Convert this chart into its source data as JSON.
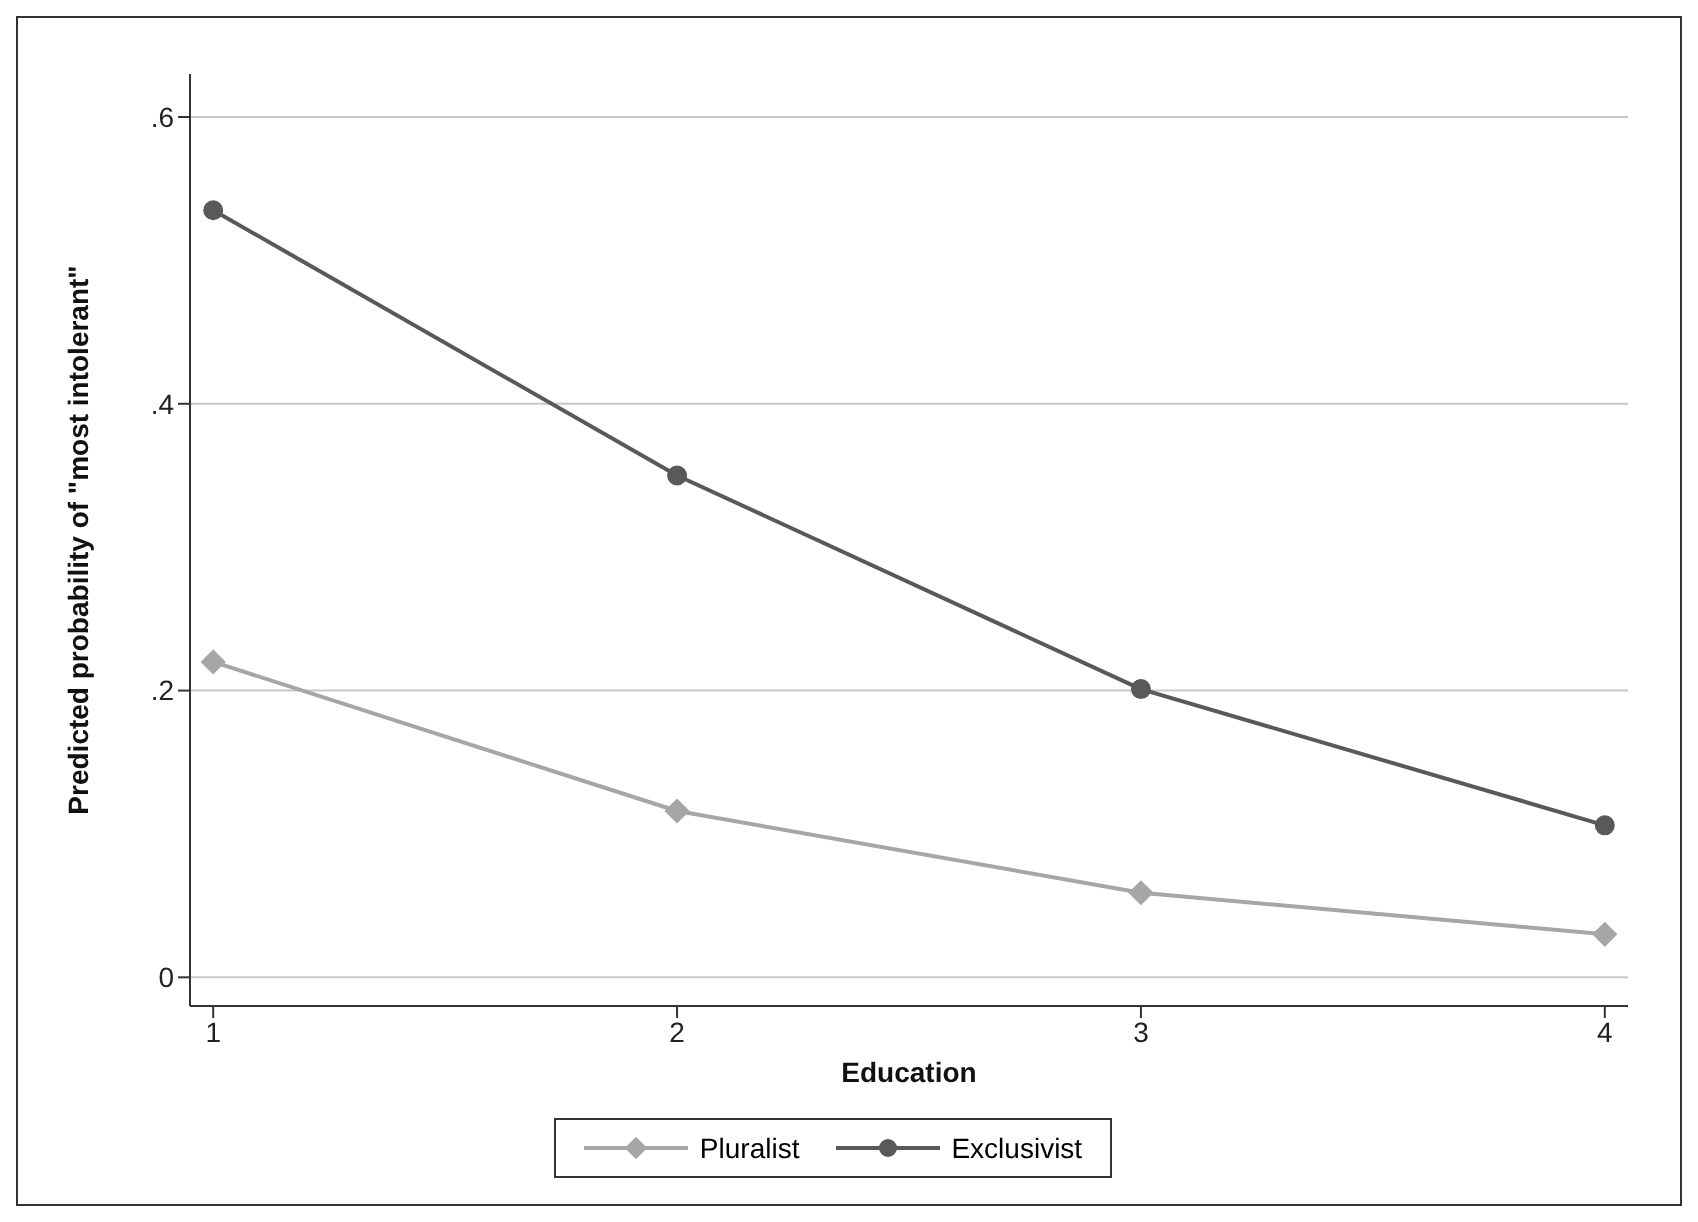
{
  "chart_data": {
    "type": "line",
    "xlabel": "Education",
    "ylabel": "Predicted probability of \"most intolerant\"",
    "x": [
      1,
      2,
      3,
      4
    ],
    "series": [
      {
        "name": "Pluralist",
        "color": "#a6a6a6",
        "marker": "diamond",
        "values": [
          0.22,
          0.116,
          0.059,
          0.03
        ]
      },
      {
        "name": "Exclusivist",
        "color": "#595959",
        "marker": "circle",
        "values": [
          0.535,
          0.35,
          0.201,
          0.106
        ]
      }
    ],
    "xlim": [
      0.95,
      4.05
    ],
    "xticks": [
      1,
      2,
      3,
      4
    ],
    "ylim": [
      -0.02,
      0.63
    ],
    "yticks": [
      {
        "value": 0,
        "label": "0"
      },
      {
        "value": 0.2,
        "label": ".2"
      },
      {
        "value": 0.4,
        "label": ".4"
      },
      {
        "value": 0.6,
        "label": ".6"
      }
    ],
    "grid": "y",
    "legend": "bottom",
    "line_style": "solid"
  }
}
